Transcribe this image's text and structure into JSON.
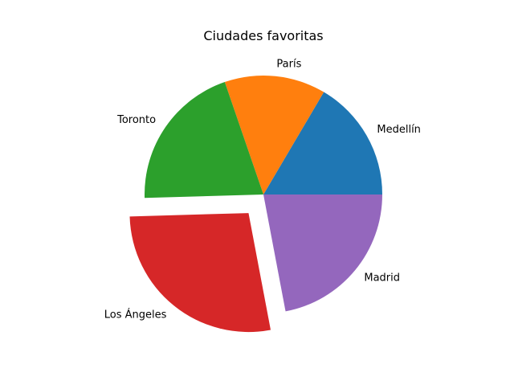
{
  "chart_data": {
    "type": "pie",
    "title": "Ciudades favoritas",
    "labels": [
      "Medellín",
      "París",
      "Toronto",
      "Los Ángeles",
      "Madrid"
    ],
    "values": [
      18,
      15,
      22,
      30,
      24
    ],
    "colors": [
      "#1f77b4",
      "#ff7f0e",
      "#2ca02c",
      "#d62728",
      "#9467bd"
    ],
    "explode": [
      0,
      0,
      0,
      0.2,
      0
    ],
    "start_angle": 0,
    "direction": "counterclockwise"
  }
}
